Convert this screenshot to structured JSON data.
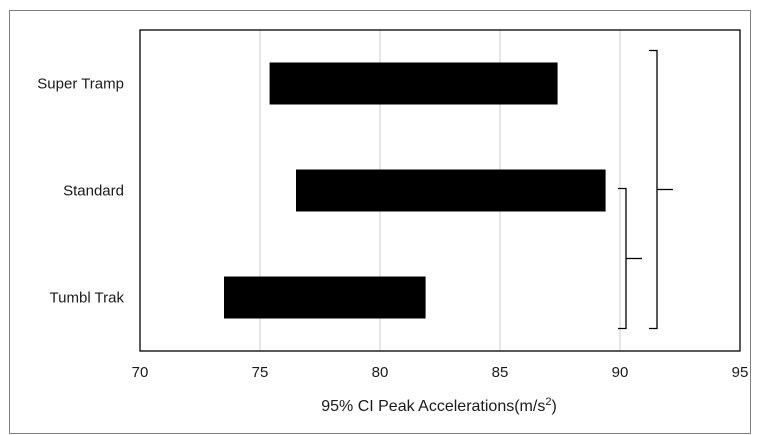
{
  "chart_data": {
    "type": "bar",
    "orientation": "horizontal",
    "subtype": "floating-range",
    "categories": [
      "Super Tramp",
      "Standard",
      "Tumbl Trak"
    ],
    "series": [
      {
        "ranges": [
          [
            75.4,
            87.4
          ],
          [
            76.5,
            89.4
          ],
          [
            73.5,
            81.9
          ]
        ]
      }
    ],
    "xlabel_main": "95% CI Peak Accelerations(m/s",
    "xlabel_sup": "2",
    "xlabel_tail": ")",
    "xlim": [
      70,
      95
    ],
    "xticks": [
      70,
      75,
      80,
      85,
      90,
      95
    ],
    "xtick_labels": [
      "70",
      "75",
      "80",
      "85",
      "90",
      "95"
    ],
    "grid": "vertical",
    "bar_color": "#000000",
    "grid_color": "#d9d9d9",
    "significance_brackets": [
      {
        "categories": [
          "Super Tramp",
          "Tumbl Trak"
        ]
      },
      {
        "categories": [
          "Standard",
          "Tumbl Trak"
        ]
      }
    ]
  }
}
